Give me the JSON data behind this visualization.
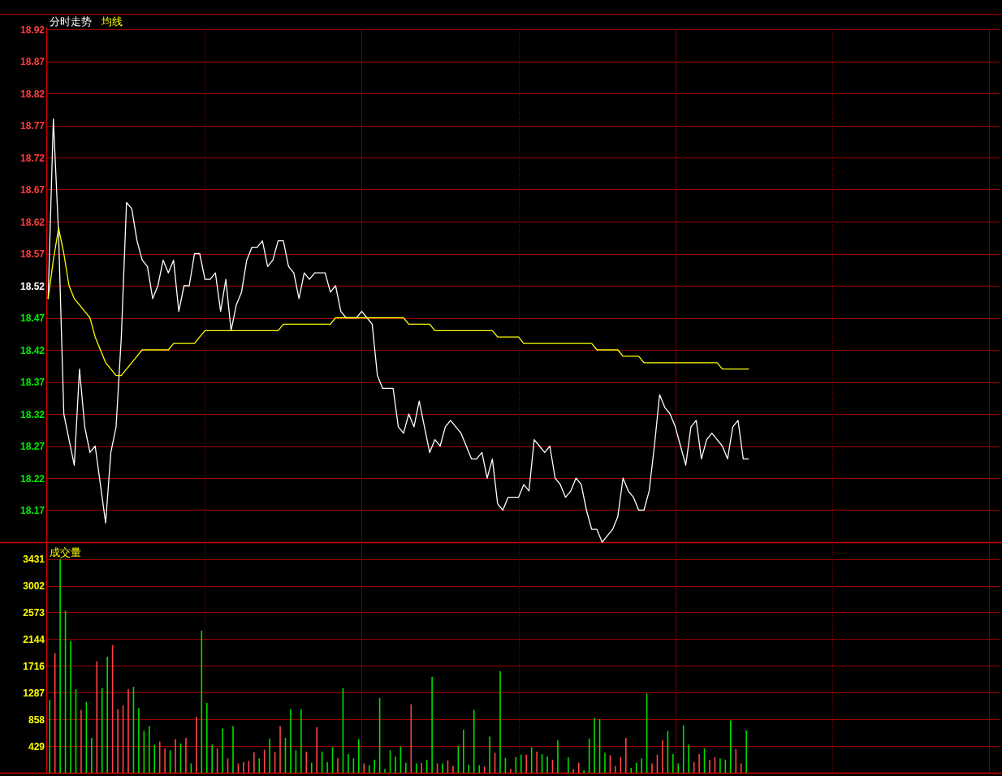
{
  "chart_data": [
    {
      "type": "line",
      "grid": true,
      "tick_labels": "y",
      "categories": [
        null,
        null,
        null,
        null,
        null,
        null,
        null,
        null,
        null,
        null,
        null,
        null,
        null,
        null,
        null,
        null,
        null,
        null,
        null,
        null,
        null,
        null,
        null,
        null,
        null,
        null,
        null,
        null,
        null,
        null,
        null,
        null,
        null,
        null,
        null,
        null,
        null,
        null,
        null,
        null,
        null,
        null,
        null,
        null,
        null,
        null,
        null,
        null,
        null,
        null,
        null,
        null,
        null,
        null,
        null,
        null,
        null,
        null,
        null,
        null,
        null,
        null,
        null,
        null,
        null,
        null,
        null,
        null,
        null,
        null,
        null,
        null,
        null,
        null,
        null,
        null,
        null,
        null,
        null,
        null,
        null,
        null,
        null,
        null,
        null,
        null,
        null,
        null,
        null,
        null,
        null,
        null,
        null,
        null,
        null,
        null,
        null,
        null,
        null,
        null,
        null,
        null,
        null,
        null,
        null,
        null,
        null,
        null,
        null,
        null,
        null,
        null,
        null,
        null,
        null,
        null,
        null,
        null,
        null,
        null,
        null,
        null,
        null,
        null,
        null,
        null,
        null,
        null,
        null,
        null,
        null,
        null,
        null,
        null,
        null
      ],
      "ylim": [
        18.12,
        18.92
      ],
      "yticks": [
        18.17,
        18.22,
        18.27,
        18.32,
        18.37,
        18.42,
        18.47,
        18.52,
        18.57,
        18.62,
        18.67,
        18.72,
        18.77,
        18.82,
        18.87,
        18.92
      ],
      "series": [
        {
          "name": "分时走势",
          "color": "#ffffff",
          "values": [
            18.5,
            18.78,
            18.6,
            18.32,
            18.28,
            18.24,
            18.39,
            18.3,
            18.26,
            18.27,
            18.21,
            18.15,
            18.26,
            18.3,
            18.44,
            18.65,
            18.64,
            18.59,
            18.56,
            18.55,
            18.5,
            18.52,
            18.56,
            18.54,
            18.56,
            18.48,
            18.52,
            18.52,
            18.57,
            18.57,
            18.53,
            18.53,
            18.54,
            18.48,
            18.53,
            18.45,
            18.49,
            18.51,
            18.56,
            18.58,
            18.58,
            18.59,
            18.55,
            18.56,
            18.59,
            18.59,
            18.55,
            18.54,
            18.5,
            18.54,
            18.53,
            18.54,
            18.54,
            18.54,
            18.51,
            18.52,
            18.48,
            18.47,
            18.47,
            18.47,
            18.48,
            18.47,
            18.46,
            18.38,
            18.36,
            18.36,
            18.36,
            18.3,
            18.29,
            18.32,
            18.3,
            18.34,
            18.3,
            18.26,
            18.28,
            18.27,
            18.3,
            18.31,
            18.3,
            18.29,
            18.27,
            18.25,
            18.25,
            18.26,
            18.22,
            18.25,
            18.18,
            18.17,
            18.19,
            18.19,
            18.19,
            18.21,
            18.2,
            18.28,
            18.27,
            18.26,
            18.27,
            18.22,
            18.21,
            18.19,
            18.2,
            18.22,
            18.21,
            18.17,
            18.14,
            18.14,
            18.12,
            18.13,
            18.14,
            18.16,
            18.22,
            18.2,
            18.19,
            18.17,
            18.17,
            18.2,
            18.27,
            18.35,
            18.33,
            18.32,
            18.3,
            18.27,
            18.24,
            18.3,
            18.31,
            18.25,
            18.28,
            18.29,
            18.28,
            18.27,
            18.25,
            18.3,
            18.31,
            18.25,
            18.25
          ]
        },
        {
          "name": "均线",
          "color": "#ffff00",
          "values": [
            18.5,
            18.56,
            18.61,
            18.57,
            18.52,
            18.5,
            18.49,
            18.48,
            18.47,
            18.44,
            18.42,
            18.4,
            18.39,
            18.38,
            18.38,
            18.39,
            18.4,
            18.41,
            18.42,
            18.42,
            18.42,
            18.42,
            18.42,
            18.42,
            18.43,
            18.43,
            18.43,
            18.43,
            18.43,
            18.44,
            18.45,
            18.45,
            18.45,
            18.45,
            18.45,
            18.45,
            18.45,
            18.45,
            18.45,
            18.45,
            18.45,
            18.45,
            18.45,
            18.45,
            18.45,
            18.46,
            18.46,
            18.46,
            18.46,
            18.46,
            18.46,
            18.46,
            18.46,
            18.46,
            18.46,
            18.47,
            18.47,
            18.47,
            18.47,
            18.47,
            18.47,
            18.47,
            18.47,
            18.47,
            18.47,
            18.47,
            18.47,
            18.47,
            18.47,
            18.46,
            18.46,
            18.46,
            18.46,
            18.46,
            18.45,
            18.45,
            18.45,
            18.45,
            18.45,
            18.45,
            18.45,
            18.45,
            18.45,
            18.45,
            18.45,
            18.45,
            18.44,
            18.44,
            18.44,
            18.44,
            18.44,
            18.43,
            18.43,
            18.43,
            18.43,
            18.43,
            18.43,
            18.43,
            18.43,
            18.43,
            18.43,
            18.43,
            18.43,
            18.43,
            18.43,
            18.42,
            18.42,
            18.42,
            18.42,
            18.42,
            18.41,
            18.41,
            18.41,
            18.41,
            18.4,
            18.4,
            18.4,
            18.4,
            18.4,
            18.4,
            18.4,
            18.4,
            18.4,
            18.4,
            18.4,
            18.4,
            18.4,
            18.4,
            18.4,
            18.39,
            18.39,
            18.39,
            18.39,
            18.39,
            18.39
          ]
        }
      ]
    },
    {
      "type": "bar",
      "title": "成交量",
      "grid": true,
      "tick_labels": "y",
      "categories": [
        null,
        null,
        null,
        null,
        null,
        null,
        null,
        null,
        null,
        null,
        null,
        null,
        null,
        null,
        null,
        null,
        null,
        null,
        null,
        null,
        null,
        null,
        null,
        null,
        null,
        null,
        null,
        null,
        null,
        null,
        null,
        null,
        null,
        null,
        null,
        null,
        null,
        null,
        null,
        null,
        null,
        null,
        null,
        null,
        null,
        null,
        null,
        null,
        null,
        null,
        null,
        null,
        null,
        null,
        null,
        null,
        null,
        null,
        null,
        null,
        null,
        null,
        null,
        null,
        null,
        null,
        null,
        null,
        null,
        null,
        null,
        null,
        null,
        null,
        null,
        null,
        null,
        null,
        null,
        null,
        null,
        null,
        null,
        null,
        null,
        null,
        null,
        null,
        null,
        null,
        null,
        null,
        null,
        null,
        null,
        null,
        null,
        null,
        null,
        null,
        null,
        null,
        null,
        null,
        null,
        null,
        null,
        null,
        null,
        null,
        null,
        null,
        null,
        null,
        null,
        null,
        null,
        null,
        null,
        null,
        null,
        null,
        null,
        null,
        null,
        null,
        null,
        null,
        null,
        null,
        null,
        null,
        null,
        null,
        null,
        null,
        null,
        null,
        null,
        null,
        null,
        null,
        null,
        null,
        null,
        null,
        null,
        null,
        null,
        null,
        null,
        null,
        null,
        null,
        null,
        null,
        null,
        null,
        null,
        null,
        null,
        null,
        null,
        null,
        null,
        null,
        null,
        null,
        null,
        null,
        null,
        null,
        null,
        null,
        null,
        null,
        null,
        null,
        null,
        null,
        null,
        null
      ],
      "ylim": [
        0,
        3660
      ],
      "yticks": [
        429,
        858,
        1287,
        1716,
        2144,
        2573,
        3002,
        3431
      ],
      "values": [
        1170,
        1920,
        3430,
        2600,
        2110,
        1340,
        1010,
        1140,
        560,
        1790,
        1360,
        1860,
        2050,
        1020,
        1080,
        1340,
        1380,
        1040,
        670,
        750,
        450,
        500,
        390,
        360,
        540,
        470,
        560,
        150,
        900,
        2280,
        1120,
        450,
        390,
        710,
        230,
        750,
        150,
        170,
        190,
        330,
        230,
        370,
        550,
        330,
        750,
        560,
        1020,
        360,
        1020,
        340,
        160,
        730,
        340,
        170,
        410,
        230,
        1360,
        300,
        230,
        540,
        150,
        120,
        210,
        1200,
        60,
        360,
        260,
        420,
        160,
        1100,
        150,
        160,
        210,
        1540,
        150,
        150,
        200,
        110,
        430,
        690,
        130,
        1010,
        120,
        100,
        580,
        320,
        1630,
        240,
        60,
        250,
        290,
        290,
        410,
        340,
        300,
        260,
        210,
        520,
        null,
        250,
        60,
        160,
        40,
        550,
        880,
        860,
        320,
        280,
        110,
        250,
        560,
        80,
        160,
        230,
        1270,
        150,
        290,
        520,
        670,
        300,
        150,
        760,
        450,
        170,
        300,
        390,
        210,
        250,
        230,
        210,
        840,
        380,
        150,
        680,
        null,
        null,
        null,
        null,
        null,
        null,
        null,
        null,
        null,
        null,
        null,
        null,
        null,
        null,
        null,
        null,
        null,
        null,
        null,
        null,
        null,
        null,
        null,
        null,
        null,
        null,
        null,
        null,
        null,
        null,
        null,
        null,
        null,
        null,
        null,
        null,
        null,
        null,
        null,
        null,
        null,
        null,
        null,
        null,
        null,
        null,
        null,
        null
      ],
      "colors": [
        "#00dd00",
        "#ff4444",
        "#00dd00",
        "#00dd00",
        "#00dd00",
        "#00dd00",
        "#ff4444",
        "#00dd00",
        "#00dd00",
        "#ff4444",
        "#00dd00",
        "#00dd00",
        "#ff4444",
        "#ff4444",
        "#ff4444",
        "#ff4444",
        "#00dd00",
        "#00dd00",
        "#00dd00",
        "#00dd00",
        "#00dd00",
        "#ff4444",
        "#ff4444",
        "#00dd00",
        "#ff4444",
        "#00dd00",
        "#ff4444",
        "#00dd00",
        "#ff4444",
        "#00dd00",
        "#00dd00",
        "#00dd00",
        "#ff4444",
        "#00dd00",
        "#ff4444",
        "#00dd00",
        "#ff4444",
        "#ff4444",
        "#ff4444",
        "#ff4444",
        "#00dd00",
        "#ff4444",
        "#00dd00",
        "#ff4444",
        "#ff4444",
        "#00dd00",
        "#00dd00",
        "#00dd00",
        "#00dd00",
        "#ff4444",
        "#00dd00",
        "#ff4444",
        "#00dd00",
        "#00dd00",
        "#00dd00",
        "#ff4444",
        "#00dd00",
        "#00dd00",
        "#00dd00",
        "#00dd00",
        "#ff4444",
        "#00dd00",
        "#00dd00",
        "#00dd00",
        "#00dd00",
        "#00dd00",
        "#00dd00",
        "#00dd00",
        "#00dd00",
        "#ff4444",
        "#00dd00",
        "#ff4444",
        "#00dd00",
        "#00dd00",
        "#ff4444",
        "#00dd00",
        "#ff4444",
        "#ff4444",
        "#00dd00",
        "#00dd00",
        "#00dd00",
        "#00dd00",
        "#00dd00",
        "#ff4444",
        "#00dd00",
        "#ff4444",
        "#00dd00",
        "#00dd00",
        "#ff4444",
        "#00dd00",
        "#00dd00",
        "#ff4444",
        "#00dd00",
        "#ff4444",
        "#00dd00",
        "#00dd00",
        "#ff4444",
        "#00dd00",
        null,
        "#00dd00",
        "#ff4444",
        "#ff4444",
        "#00dd00",
        "#00dd00",
        "#00dd00",
        "#00dd00",
        "#00dd00",
        "#ff4444",
        "#ff4444",
        "#ff4444",
        "#ff4444",
        "#00dd00",
        "#00dd00",
        "#00dd00",
        "#00dd00",
        "#ff4444",
        "#ff4444",
        "#ff4444",
        "#00dd00",
        "#00dd00",
        "#00dd00",
        "#00dd00",
        "#00dd00",
        "#ff4444",
        "#ff4444",
        "#00dd00",
        "#ff4444",
        "#ff4444",
        "#00dd00",
        "#00dd00",
        "#00dd00",
        "#ff4444",
        "#ff4444",
        "#00dd00",
        null,
        null,
        null,
        null,
        null,
        null,
        null,
        null,
        null,
        null,
        null,
        null,
        null,
        null,
        null,
        null,
        null,
        null,
        null,
        null,
        null,
        null,
        null,
        null,
        null,
        null,
        null,
        null,
        null,
        null,
        null,
        null,
        null,
        null,
        null,
        null,
        null,
        null,
        null,
        null,
        null,
        null,
        null,
        null,
        null,
        null,
        null,
        null
      ]
    }
  ]
}
